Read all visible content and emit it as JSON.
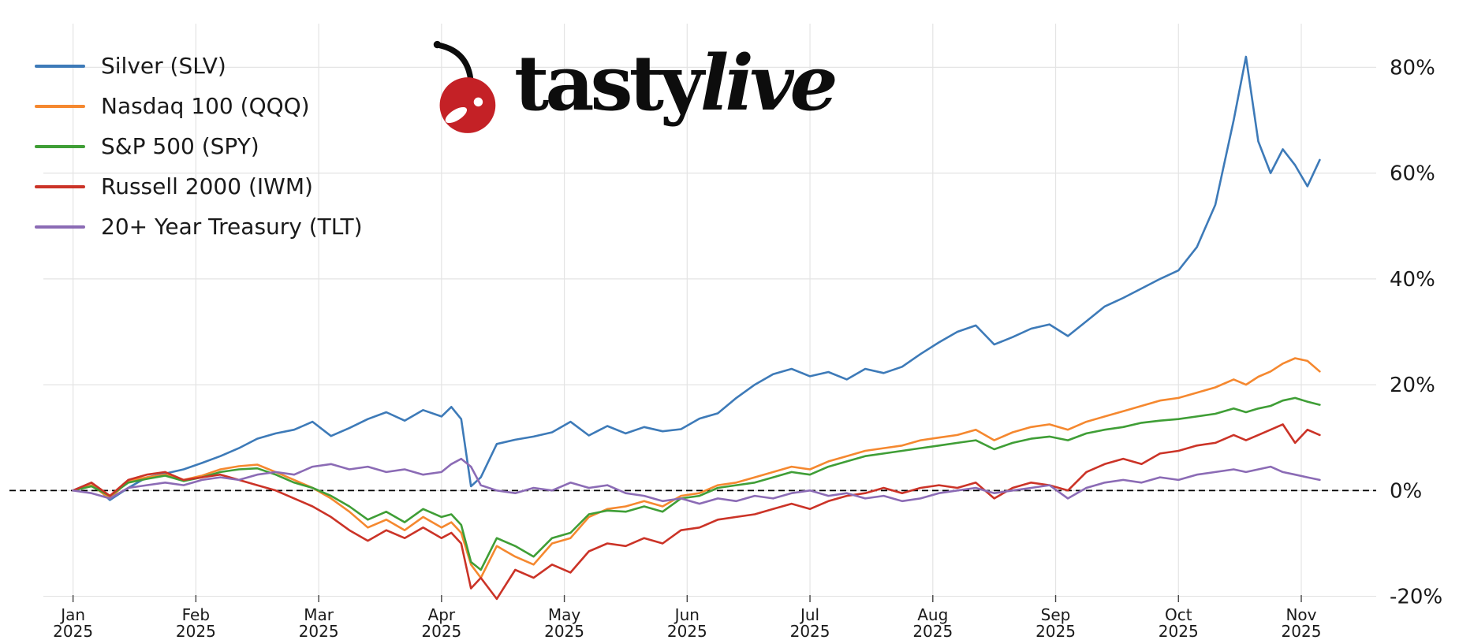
{
  "logo": {
    "tasty": "tasty",
    "live": "live",
    "cherry_color": "#c42126",
    "stem_color": "#0d0d0d",
    "text_color": "#0d0d0d"
  },
  "chart_data": {
    "type": "line",
    "title": "",
    "xlabel": "",
    "ylabel": "",
    "x_unit": "months since 2025-01-01",
    "grid": true,
    "legend_position": "upper-left",
    "xlim": [
      -0.37,
      10.61
    ],
    "ylim": [
      -22,
      89
    ],
    "y_ticks": [
      {
        "value": 80,
        "label": "80%"
      },
      {
        "value": 60,
        "label": "60%"
      },
      {
        "value": 40,
        "label": "40%"
      },
      {
        "value": 20,
        "label": "20%"
      },
      {
        "value": 0,
        "label": "0%"
      },
      {
        "value": -20,
        "label": "-20%"
      }
    ],
    "x_ticks": [
      {
        "pos": 0,
        "label": "Jan",
        "sub": "2025"
      },
      {
        "pos": 1,
        "label": "Feb",
        "sub": "2025"
      },
      {
        "pos": 2,
        "label": "Mar",
        "sub": "2025"
      },
      {
        "pos": 3,
        "label": "Apr",
        "sub": "2025"
      },
      {
        "pos": 4,
        "label": "May",
        "sub": "2025"
      },
      {
        "pos": 5,
        "label": "Jun",
        "sub": "2025"
      },
      {
        "pos": 6,
        "label": "Jul",
        "sub": "2025"
      },
      {
        "pos": 7,
        "label": "Aug",
        "sub": "2025"
      },
      {
        "pos": 8,
        "label": "Sep",
        "sub": "2025"
      },
      {
        "pos": 9,
        "label": "Oct",
        "sub": "2025"
      },
      {
        "pos": 10,
        "label": "Nov",
        "sub": "2025"
      }
    ],
    "zero_line": {
      "value": 0,
      "style": "dashed",
      "color": "#000000"
    },
    "grid_color": "#e4e4e4",
    "tick_text_color": "#1a1a1a",
    "x": [
      0,
      0.15,
      0.3,
      0.45,
      0.6,
      0.75,
      0.9,
      1.05,
      1.2,
      1.35,
      1.5,
      1.65,
      1.8,
      1.95,
      2.1,
      2.25,
      2.4,
      2.55,
      2.7,
      2.85,
      3.0,
      3.08,
      3.16,
      3.24,
      3.32,
      3.45,
      3.6,
      3.75,
      3.9,
      4.05,
      4.2,
      4.35,
      4.5,
      4.65,
      4.8,
      4.95,
      5.1,
      5.25,
      5.4,
      5.55,
      5.7,
      5.85,
      6.0,
      6.15,
      6.3,
      6.45,
      6.6,
      6.75,
      6.9,
      7.05,
      7.2,
      7.35,
      7.5,
      7.65,
      7.8,
      7.95,
      8.1,
      8.25,
      8.4,
      8.55,
      8.7,
      8.85,
      9.0,
      9.15,
      9.3,
      9.45,
      9.55,
      9.65,
      9.75,
      9.85,
      9.95,
      10.05,
      10.15
    ],
    "series": [
      {
        "name": "Silver (SLV)",
        "color": "#3d7ab8",
        "values": [
          0,
          1.5,
          -1.8,
          0.5,
          2.5,
          3.2,
          4.0,
          5.2,
          6.5,
          8.0,
          9.8,
          10.8,
          11.5,
          13.0,
          10.3,
          11.8,
          13.5,
          14.8,
          13.2,
          15.2,
          14.0,
          15.8,
          13.5,
          0.8,
          2.5,
          8.8,
          9.6,
          10.2,
          11.0,
          13.0,
          10.4,
          12.2,
          10.8,
          12.0,
          11.2,
          11.6,
          13.6,
          14.6,
          17.5,
          20.0,
          22.0,
          23.0,
          21.6,
          22.4,
          21.0,
          23.0,
          22.2,
          23.4,
          25.8,
          28.0,
          30.0,
          31.2,
          27.6,
          29.0,
          30.6,
          31.4,
          29.2,
          32.0,
          34.8,
          36.4,
          38.2,
          40.0,
          41.6,
          46.0,
          54.0,
          70.0,
          82.0,
          66.0,
          60.0,
          64.5,
          61.5,
          57.5,
          62.5
        ]
      },
      {
        "name": "Nasdaq 100 (QQQ)",
        "color": "#f5882f",
        "values": [
          0,
          1.0,
          -1.5,
          1.8,
          2.5,
          3.0,
          2.0,
          2.8,
          4.0,
          4.6,
          4.9,
          3.5,
          2.0,
          0.5,
          -1.5,
          -4.0,
          -7.0,
          -5.5,
          -7.5,
          -5.0,
          -7.0,
          -6.0,
          -8.0,
          -14.0,
          -16.5,
          -10.5,
          -12.5,
          -14.0,
          -10.0,
          -9.0,
          -5.0,
          -3.5,
          -3.0,
          -2.0,
          -3.0,
          -1.0,
          -0.5,
          1.0,
          1.5,
          2.5,
          3.5,
          4.5,
          4.0,
          5.5,
          6.5,
          7.5,
          8.0,
          8.5,
          9.5,
          10.0,
          10.5,
          11.5,
          9.5,
          11.0,
          12.0,
          12.5,
          11.5,
          13.0,
          14.0,
          15.0,
          16.0,
          17.0,
          17.5,
          18.5,
          19.5,
          21.0,
          20.0,
          21.5,
          22.5,
          24.0,
          25.0,
          24.5,
          22.5
        ]
      },
      {
        "name": "S&P 500 (SPY)",
        "color": "#3f9e36",
        "values": [
          0,
          0.8,
          -1.0,
          1.5,
          2.2,
          2.8,
          1.8,
          2.5,
          3.5,
          4.0,
          4.2,
          3.0,
          1.5,
          0.5,
          -1.0,
          -3.0,
          -5.5,
          -4.0,
          -6.0,
          -3.5,
          -5.0,
          -4.5,
          -6.5,
          -13.5,
          -15.0,
          -9.0,
          -10.5,
          -12.5,
          -9.0,
          -8.0,
          -4.5,
          -3.8,
          -4.0,
          -3.0,
          -4.0,
          -1.5,
          -1.0,
          0.5,
          1.0,
          1.5,
          2.5,
          3.5,
          3.0,
          4.5,
          5.5,
          6.5,
          7.0,
          7.5,
          8.0,
          8.5,
          9.0,
          9.5,
          7.8,
          9.0,
          9.8,
          10.2,
          9.5,
          10.8,
          11.5,
          12.0,
          12.8,
          13.2,
          13.5,
          14.0,
          14.5,
          15.5,
          14.8,
          15.5,
          16.0,
          17.0,
          17.5,
          16.8,
          16.2
        ]
      },
      {
        "name": "Russell 2000 (IWM)",
        "color": "#cb3327",
        "values": [
          0,
          1.5,
          -1.0,
          2.0,
          3.0,
          3.5,
          2.0,
          2.5,
          3.0,
          2.0,
          1.0,
          0.0,
          -1.5,
          -3.0,
          -5.0,
          -7.5,
          -9.5,
          -7.5,
          -9.0,
          -7.0,
          -9.0,
          -8.0,
          -10.0,
          -18.5,
          -16.5,
          -20.5,
          -15.0,
          -16.5,
          -14.0,
          -15.5,
          -11.5,
          -10.0,
          -10.5,
          -9.0,
          -10.0,
          -7.5,
          -7.0,
          -5.5,
          -5.0,
          -4.5,
          -3.5,
          -2.5,
          -3.5,
          -2.0,
          -1.0,
          -0.5,
          0.5,
          -0.5,
          0.5,
          1.0,
          0.5,
          1.5,
          -1.5,
          0.5,
          1.5,
          1.0,
          0.0,
          3.5,
          5.0,
          6.0,
          5.0,
          7.0,
          7.5,
          8.5,
          9.0,
          10.5,
          9.5,
          10.5,
          11.5,
          12.5,
          9.0,
          11.5,
          10.5
        ]
      },
      {
        "name": "20+ Year Treasury (TLT)",
        "color": "#8b6bb5",
        "values": [
          0,
          -0.5,
          -1.5,
          0.5,
          1.0,
          1.5,
          1.0,
          2.0,
          2.5,
          2.0,
          3.0,
          3.5,
          3.0,
          4.5,
          5.0,
          4.0,
          4.5,
          3.5,
          4.0,
          3.0,
          3.5,
          5.0,
          6.0,
          4.5,
          1.0,
          0.0,
          -0.5,
          0.5,
          0.0,
          1.5,
          0.5,
          1.0,
          -0.5,
          -1.0,
          -2.0,
          -1.5,
          -2.5,
          -1.5,
          -2.0,
          -1.0,
          -1.5,
          -0.5,
          0.0,
          -1.0,
          -0.5,
          -1.5,
          -1.0,
          -2.0,
          -1.5,
          -0.5,
          0.0,
          0.5,
          -0.5,
          0.0,
          0.5,
          1.0,
          -1.5,
          0.5,
          1.5,
          2.0,
          1.5,
          2.5,
          2.0,
          3.0,
          3.5,
          4.0,
          3.5,
          4.0,
          4.5,
          3.5,
          3.0,
          2.5,
          2.0
        ]
      }
    ]
  }
}
